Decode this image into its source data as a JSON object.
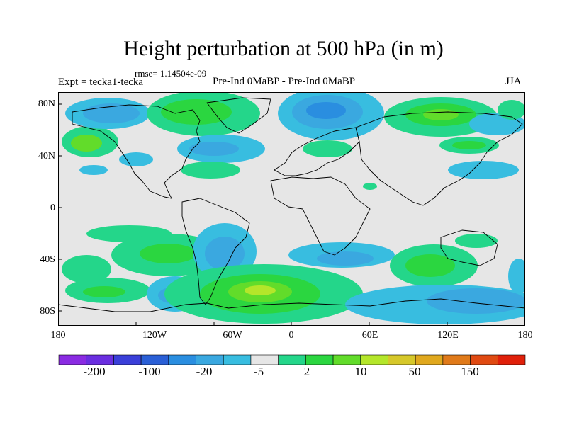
{
  "title": "Height perturbation at 500 hPa (in m)",
  "rmse": "rmse= 1.14504e-09",
  "experiment": "Expt = tecka1-tecka",
  "comparison": "Pre-Ind 0MaBP - Pre-Ind 0MaBP",
  "season": "JJA",
  "latitude_labels": [
    "80N",
    "40N",
    "0",
    "40S",
    "80S"
  ],
  "longitude_labels": [
    "180",
    "120W",
    "60W",
    "0",
    "60E",
    "120E",
    "180"
  ],
  "colorbar": {
    "labels": [
      "-200",
      "-100",
      "-20",
      "-5",
      "2",
      "10",
      "50",
      "150"
    ],
    "colors": [
      "#8a2be2",
      "#6a2ee0",
      "#3a3fd9",
      "#2a5fd6",
      "#2a8ee0",
      "#3aa8e0",
      "#38bde0",
      "#e6e6e6",
      "#24d68a",
      "#2bd640",
      "#62dc2a",
      "#b4e62a",
      "#d6c82a",
      "#e0a81e",
      "#e07a1a",
      "#e04a12",
      "#e0200a"
    ]
  },
  "colors": {
    "ocean": "#e6e6e6",
    "coast": "#000000"
  }
}
